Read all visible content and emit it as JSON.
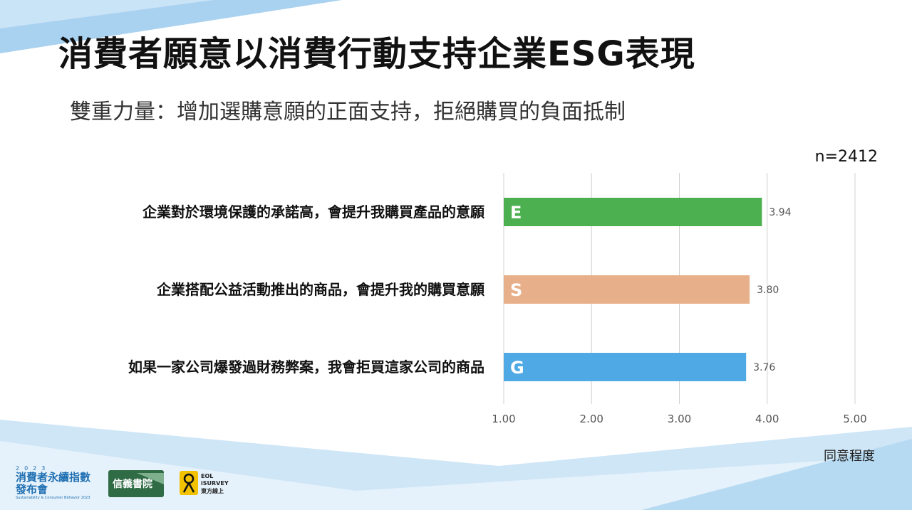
{
  "slide": {
    "title": "消費者願意以消費行動支持企業ESG表現",
    "subtitle": "雙重力量：增加選購意願的正面支持，拒絕購買的負面抵制",
    "sample_size": "n=2412",
    "axis_title": "同意程度"
  },
  "chart_data": {
    "type": "bar",
    "orientation": "horizontal",
    "categories": [
      "企業對於環境保護的承諾高，會提升我購買產品的意願",
      "企業搭配公益活動推出的商品，會提升我的購買意願",
      "如果一家公司爆發過財務弊案，我會拒買這家公司的商品"
    ],
    "values": [
      3.94,
      3.8,
      3.76
    ],
    "value_labels": [
      "3.94",
      "3.80",
      "3.76"
    ],
    "bar_letters": [
      "E",
      "S",
      "G"
    ],
    "bar_colors": [
      "#4caf50",
      "#e8b08a",
      "#4ea9e4"
    ],
    "xlim": [
      1.0,
      5.0
    ],
    "xticks": [
      1.0,
      2.0,
      3.0,
      4.0,
      5.0
    ],
    "xtick_labels": [
      "1.00",
      "2.00",
      "3.00",
      "4.00",
      "5.00"
    ],
    "xlabel": "同意程度",
    "grid": true
  },
  "logos": {
    "event": {
      "year": "2023",
      "line1": "消費者永續指數",
      "line2": "發布會",
      "english": "Sustainability & Consumer Behavior 2023"
    },
    "xinyi": {
      "text": "信義書院"
    },
    "eol": {
      "line1": "EOL",
      "line2": "iSURVEY",
      "line3": "東方線上"
    }
  },
  "colors": {
    "accent_blue": "#8fc3ea",
    "light_blue": "#d7eaf8",
    "grid": "#d0d0d0"
  }
}
